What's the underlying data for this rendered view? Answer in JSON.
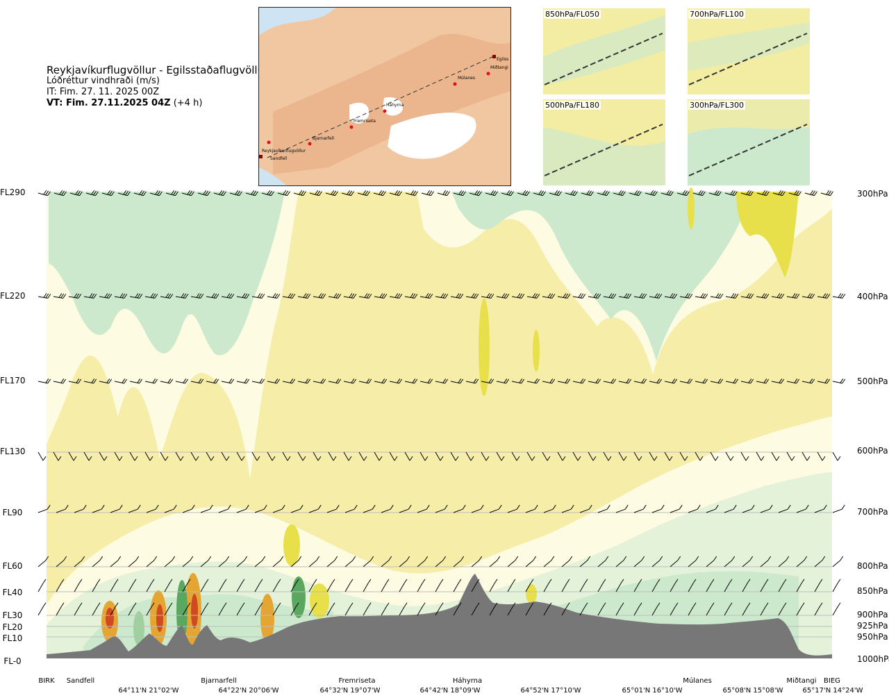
{
  "header": {
    "title": "Reykjavíkurflugvöllur - Egilsstaðaflugvöllur",
    "subtitle": "Lóðréttur vindhraði (m/s)",
    "issue_time": "IT: Fim. 27. 11. 2025 00Z",
    "valid_time_bold": "VT: Fim. 27.11.2025 04Z",
    "valid_time_suffix": "(+4 h)"
  },
  "route_map": {
    "waypoints": [
      "Reykjavíkurflugvöllur",
      "Sandfell",
      "Bjarnarfell",
      "Fremriseta",
      "Háhyrna",
      "Múlanes",
      "Miðtangi",
      "Egilss"
    ]
  },
  "mini_maps": [
    {
      "label": "850hPa/FL050"
    },
    {
      "label": "700hPa/FL100"
    },
    {
      "label": "500hPa/FL180"
    },
    {
      "label": "300hPa/FL300"
    }
  ],
  "chart_data": {
    "type": "heatmap",
    "title": "Lóðréttur vindhraði (m/s)",
    "left_axis": [
      "FL290",
      "FL220",
      "FL170",
      "FL130",
      "FL90",
      "FL60",
      "FL40",
      "FL30",
      "FL20",
      "FL10",
      "FL-0"
    ],
    "right_axis": [
      "300hPa",
      "400hPa",
      "500hPa",
      "600hPa",
      "700hPa",
      "800hPa",
      "850hPa",
      "900hPa",
      "925hPa",
      "950hPa",
      "1000hPa"
    ],
    "pressure_levels_hpa": [
      300,
      400,
      500,
      600,
      700,
      800,
      850,
      900,
      925,
      950,
      1000
    ],
    "x_locations": [
      "BIRK",
      "Sandfell",
      "Bjarnarfell",
      "Fremriseta",
      "Háhyrna",
      "Múlanes",
      "Miðtangi",
      "BIEG"
    ],
    "x_coordinates": [
      "64°11'N 21°02'W",
      "64°22'N 20°06'W",
      "64°32'N 19°07'W",
      "64°42'N 18°09'W",
      "64°52'N 17°10'W",
      "65°01'N 16°10'W",
      "65°08'N 15°08'W",
      "65°17'N 14°24'W"
    ],
    "colors": {
      "background": "#f5eda8",
      "light_neutral": "#fdfbe2",
      "pale_green": "#e4f2da",
      "light_green": "#cde9cd",
      "mid_green": "#9fd19f",
      "dark_green": "#5aa860",
      "yellow": "#e8e04a",
      "orange": "#e4a532",
      "red": "#cf4a1e",
      "terrain": "#777777"
    }
  }
}
